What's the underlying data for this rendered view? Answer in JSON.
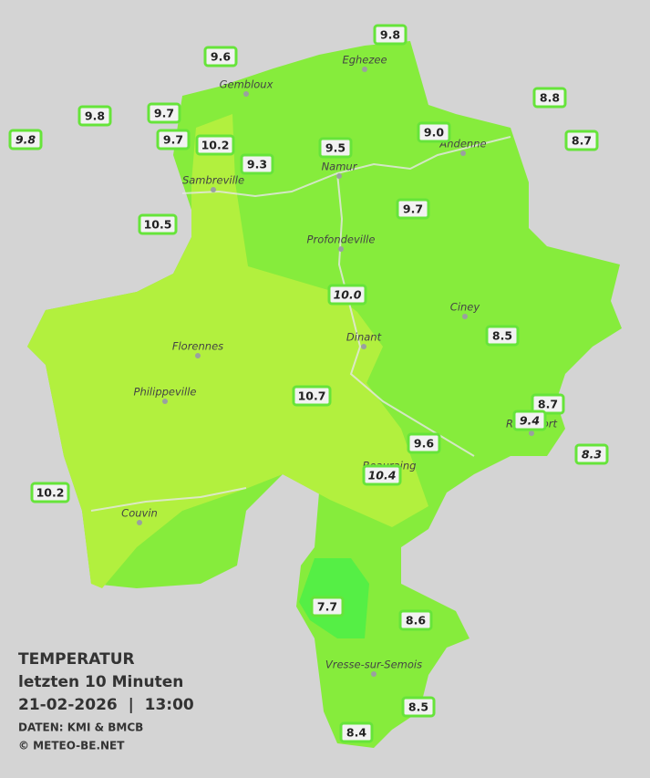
{
  "legend": {
    "title": "TEMPERATUR",
    "period": "letzten 10 Minuten",
    "datetime": "21-02-2026  |  13:00",
    "source": "DATEN: KMI & BMCB",
    "copyright": "© METEO-BE.NET"
  },
  "cities": [
    "Eghezee",
    "Gembloux",
    "Andenne",
    "Namur",
    "Sambreville",
    "Profondeville",
    "Ciney",
    "Dinant",
    "Florennes",
    "Philippeville",
    "Rochefort",
    "Beauraing",
    "Couvin",
    "Vresse-sur-Semois"
  ],
  "stations": [
    "9.8",
    "9.6",
    "8.8",
    "9.8",
    "9.7",
    "9.7",
    "10.2",
    "9.8",
    "9.5",
    "9.0",
    "8.7",
    "9.3",
    "10.5",
    "9.7",
    "10.0",
    "8.5",
    "10.7",
    "8.7",
    "9.4",
    "8.3",
    "9.6",
    "10.4",
    "10.2",
    "7.7",
    "8.6",
    "8.5",
    "8.4"
  ]
}
